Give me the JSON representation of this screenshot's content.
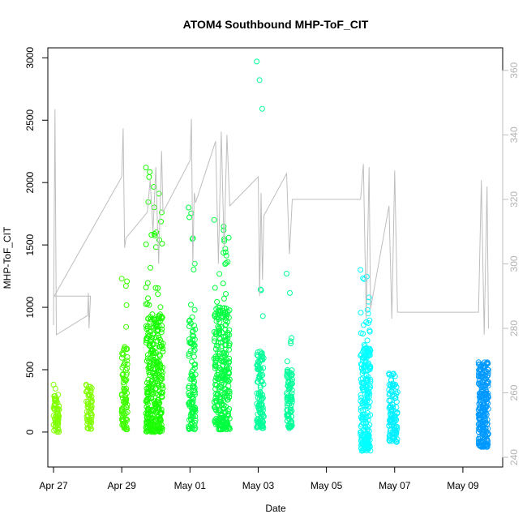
{
  "chart_data": {
    "type": "scatter",
    "title": "ATOM4 Southbound MHP-ToF_CIT",
    "xlabel": "Date",
    "ylabel": "MHP-ToF_CIT",
    "x_axis": {
      "unit": "date",
      "range": [
        "2018-04-26T20:00",
        "2018-05-10T04:00"
      ],
      "ticks": [
        {
          "date": "2018-04-27T00:00",
          "label": "Apr 27"
        },
        {
          "date": "2018-04-29T00:00",
          "label": "Apr 29"
        },
        {
          "date": "2018-05-01T00:00",
          "label": "May 01"
        },
        {
          "date": "2018-05-03T00:00",
          "label": "May 03"
        },
        {
          "date": "2018-05-05T00:00",
          "label": "May 05"
        },
        {
          "date": "2018-05-07T00:00",
          "label": "May 07"
        },
        {
          "date": "2018-05-09T00:00",
          "label": "May 09"
        }
      ]
    },
    "y_left": {
      "range": [
        -280,
        3080
      ],
      "ticks": [
        0,
        500,
        1000,
        1500,
        2000,
        2500,
        3000
      ]
    },
    "y_right": {
      "range": [
        237,
        367
      ],
      "ticks": [
        240,
        260,
        280,
        300,
        320,
        340,
        360
      ],
      "color": "#bebebe"
    },
    "series": [
      {
        "style": "points",
        "axis": "left",
        "clusters": [
          {
            "t0": "2018-04-27T00:00",
            "t1": "2018-04-27T04:00",
            "low": 0,
            "high": 300,
            "max": 380,
            "n": 60,
            "color": "#80ff00"
          },
          {
            "t0": "2018-04-27T23:00",
            "t1": "2018-04-28T03:00",
            "low": 20,
            "high": 330,
            "max": 380,
            "n": 60,
            "color": "#80ff00"
          },
          {
            "t0": "2018-04-29T00:00",
            "t1": "2018-04-29T04:00",
            "low": 20,
            "high": 700,
            "max": 1230,
            "n": 90,
            "color": "#40ff00"
          },
          {
            "t0": "2018-04-29T17:00",
            "t1": "2018-04-30T05:00",
            "low": 0,
            "high": 950,
            "max": 2120,
            "n": 340,
            "color": "#1aff00"
          },
          {
            "t0": "2018-04-30T23:00",
            "t1": "2018-05-01T04:00",
            "low": 20,
            "high": 900,
            "max": 1800,
            "n": 110,
            "color": "#00ff40"
          },
          {
            "t0": "2018-05-01T17:00",
            "t1": "2018-05-02T04:00",
            "low": 20,
            "high": 1000,
            "max": 1700,
            "n": 300,
            "color": "#00ff40"
          },
          {
            "t0": "2018-05-02T23:00",
            "t1": "2018-05-03T04:00",
            "low": 30,
            "high": 650,
            "max": 2970,
            "n": 110,
            "color": "#00ff99"
          },
          {
            "t0": "2018-05-03T20:00",
            "t1": "2018-05-04T00:00",
            "low": 30,
            "high": 500,
            "max": 1270,
            "n": 90,
            "color": "#00ff99"
          },
          {
            "t0": "2018-05-06T00:00",
            "t1": "2018-05-06T07:00",
            "low": -150,
            "high": 700,
            "max": 1300,
            "n": 230,
            "color": "#00ffff"
          },
          {
            "t0": "2018-05-06T20:00",
            "t1": "2018-05-07T02:00",
            "low": -80,
            "high": 450,
            "max": 470,
            "n": 110,
            "color": "#00f0ff"
          },
          {
            "t0": "2018-05-09T11:00",
            "t1": "2018-05-09T18:00",
            "low": -120,
            "high": 500,
            "max": 560,
            "n": 230,
            "color": "#0099ff"
          }
        ]
      },
      {
        "style": "line",
        "axis": "right",
        "color": "#bebebe",
        "points": [
          [
            "2018-04-27T00:00",
            281
          ],
          [
            "2018-04-27T01:00",
            348
          ],
          [
            "2018-04-27T02:00",
            278
          ],
          [
            "2018-04-28T00:00",
            284
          ],
          [
            "2018-04-28T00:30",
            291
          ],
          [
            "2018-04-28T01:00",
            280
          ],
          [
            "2018-04-28T02:00",
            290
          ],
          [
            "2018-04-27T00:30",
            290
          ],
          [
            "2018-04-29T00:00",
            327
          ],
          [
            "2018-04-29T01:00",
            342
          ],
          [
            "2018-04-29T02:00",
            305
          ],
          [
            "2018-04-29T03:00",
            308
          ],
          [
            "2018-04-29T18:00",
            316
          ],
          [
            "2018-04-29T20:00",
            326
          ],
          [
            "2018-04-29T22:00",
            310
          ],
          [
            "2018-04-30T00:00",
            330
          ],
          [
            "2018-04-30T02:00",
            300
          ],
          [
            "2018-04-30T04:00",
            335
          ],
          [
            "2018-04-30T05:00",
            316
          ],
          [
            "2018-05-01T00:00",
            332
          ],
          [
            "2018-05-01T01:00",
            345
          ],
          [
            "2018-05-01T02:00",
            300
          ],
          [
            "2018-05-01T03:00",
            322
          ],
          [
            "2018-05-01T04:00",
            319
          ],
          [
            "2018-05-01T18:00",
            338
          ],
          [
            "2018-05-01T20:00",
            300
          ],
          [
            "2018-05-01T22:00",
            341
          ],
          [
            "2018-05-02T00:00",
            305
          ],
          [
            "2018-05-02T02:00",
            340
          ],
          [
            "2018-05-02T04:00",
            318
          ],
          [
            "2018-05-03T00:00",
            327
          ],
          [
            "2018-05-03T01:00",
            290
          ],
          [
            "2018-05-03T02:00",
            322
          ],
          [
            "2018-05-03T03:00",
            295
          ],
          [
            "2018-05-03T04:00",
            315
          ],
          [
            "2018-05-03T20:00",
            328
          ],
          [
            "2018-05-03T22:00",
            303
          ],
          [
            "2018-05-04T00:00",
            320
          ],
          [
            "2018-05-06T00:00",
            320
          ],
          [
            "2018-05-06T02:00",
            331
          ],
          [
            "2018-05-06T04:00",
            283
          ],
          [
            "2018-05-06T06:00",
            330
          ],
          [
            "2018-05-06T07:00",
            286
          ],
          [
            "2018-05-06T20:00",
            318
          ],
          [
            "2018-05-06T22:00",
            283
          ],
          [
            "2018-05-07T00:00",
            329
          ],
          [
            "2018-05-07T02:00",
            285
          ],
          [
            "2018-05-09T11:00",
            285
          ],
          [
            "2018-05-09T13:00",
            326
          ],
          [
            "2018-05-09T15:00",
            278
          ],
          [
            "2018-05-09T17:00",
            324
          ],
          [
            "2018-05-09T18:00",
            280
          ]
        ]
      }
    ],
    "grid": false,
    "legend": "none"
  }
}
